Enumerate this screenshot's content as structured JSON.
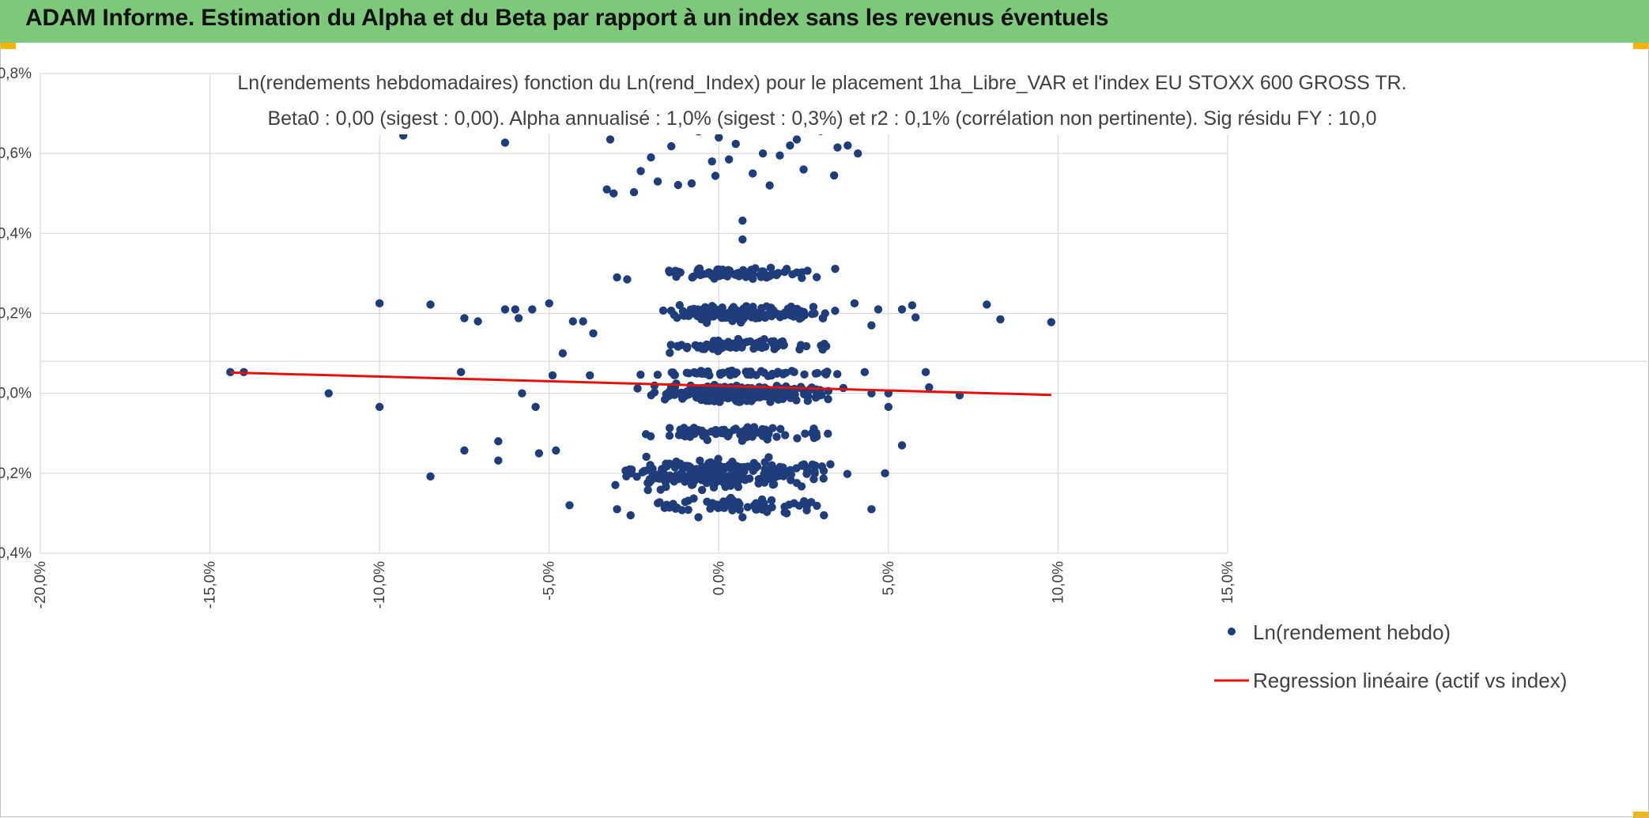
{
  "header": {
    "title": "ADAM Informe. Estimation du Alpha et du Beta par rapport à un index sans les revenus éventuels"
  },
  "chart_data": {
    "type": "scatter",
    "title": "Ln(rendements hebdomadaires) fonction du Ln(rend_Index) pour le placement 1ha_Libre_VAR et l'index EU STOXX 600 GROSS TR.",
    "subtitle": "Beta0 : 0,00 (sigest : 0,00). Alpha annualisé : 1,0% (sigest : 0,3%) et r2 : 0,1% (corrélation non pertinente). Sig résidu FY : 10,0",
    "xlabel": "",
    "ylabel": "",
    "xlim": [
      -20,
      15
    ],
    "ylim": [
      -0.4,
      0.8
    ],
    "x_ticks": [
      "-20,0%",
      "-15,0%",
      "-10,0%",
      "-5,0%",
      "0,0%",
      "5,0%",
      "10,0%",
      "15,0%"
    ],
    "y_ticks": [
      "0,8%",
      "0,6%",
      "0,4%",
      "0,2%",
      "0,0%",
      "-0,2%",
      "-0,4%"
    ],
    "grid": true,
    "legend_position": "bottom-right",
    "colors": {
      "points": "#1f3d7a",
      "regression": "#e3120b",
      "grid": "#d9d9d9",
      "header": "#7ec87c"
    },
    "series": [
      {
        "name": "Ln(rendement hebdo)",
        "type": "scatter",
        "points": [
          [
            -14.4,
            0.053
          ],
          [
            -14.0,
            0.053
          ],
          [
            -11.5,
            0.0
          ],
          [
            -10.0,
            0.225
          ],
          [
            -10.0,
            -0.034
          ],
          [
            -9.3,
            0.645
          ],
          [
            -8.5,
            0.222
          ],
          [
            -8.5,
            -0.208
          ],
          [
            -7.5,
            0.188
          ],
          [
            -7.5,
            -0.143
          ],
          [
            -7.6,
            0.053
          ],
          [
            -7.1,
            0.18
          ],
          [
            -6.3,
            0.627
          ],
          [
            -6.5,
            -0.12
          ],
          [
            -6.5,
            -0.168
          ],
          [
            -6.3,
            0.21
          ],
          [
            -6.0,
            0.21
          ],
          [
            -5.9,
            0.188
          ],
          [
            -5.8,
            0.0
          ],
          [
            -5.5,
            0.21
          ],
          [
            -5.4,
            -0.034
          ],
          [
            -5.3,
            -0.15
          ],
          [
            -5.0,
            0.225
          ],
          [
            -4.9,
            0.045
          ],
          [
            -4.8,
            -0.143
          ],
          [
            -4.6,
            0.1
          ],
          [
            -4.4,
            -0.28
          ],
          [
            -4.3,
            0.18
          ],
          [
            -4.0,
            0.18
          ],
          [
            -3.8,
            0.045
          ],
          [
            -3.7,
            0.15
          ],
          [
            -3.5,
            0.67
          ],
          [
            -3.3,
            0.51
          ],
          [
            -3.2,
            0.635
          ],
          [
            -3.1,
            0.5
          ],
          [
            -3.0,
            0.29
          ],
          [
            -2.7,
            0.285
          ],
          [
            -2.5,
            0.503
          ],
          [
            -2.3,
            0.556
          ],
          [
            -2.0,
            0.59
          ],
          [
            -1.9,
            0.667
          ],
          [
            -1.8,
            0.53
          ],
          [
            -1.6,
            0.663
          ],
          [
            -1.4,
            0.618
          ],
          [
            -1.2,
            0.521
          ],
          [
            -1.0,
            0.678
          ],
          [
            -0.8,
            0.525
          ],
          [
            -0.6,
            0.655
          ],
          [
            -0.2,
            0.58
          ],
          [
            -0.1,
            0.544
          ],
          [
            0.0,
            0.64
          ],
          [
            0.3,
            0.585
          ],
          [
            0.5,
            0.624
          ],
          [
            0.7,
            0.432
          ],
          [
            0.7,
            0.385
          ],
          [
            1.0,
            0.55
          ],
          [
            1.3,
            0.6
          ],
          [
            1.5,
            0.52
          ],
          [
            1.8,
            0.595
          ],
          [
            2.1,
            0.62
          ],
          [
            2.3,
            0.635
          ],
          [
            2.5,
            0.56
          ],
          [
            3.0,
            0.656
          ],
          [
            3.4,
            0.545
          ],
          [
            3.5,
            0.615
          ],
          [
            3.8,
            0.62
          ],
          [
            4.1,
            0.6
          ],
          [
            4.0,
            0.225
          ],
          [
            4.5,
            0.17
          ],
          [
            4.7,
            0.21
          ],
          [
            4.3,
            0.053
          ],
          [
            4.5,
            0.0
          ],
          [
            5.0,
            0.0
          ],
          [
            5.0,
            -0.034
          ],
          [
            4.9,
            -0.2
          ],
          [
            4.5,
            -0.29
          ],
          [
            5.4,
            0.21
          ],
          [
            5.4,
            -0.13
          ],
          [
            5.7,
            0.22
          ],
          [
            5.8,
            0.19
          ],
          [
            6.1,
            0.053
          ],
          [
            6.2,
            0.015
          ],
          [
            7.1,
            -0.005
          ],
          [
            7.9,
            0.222
          ],
          [
            8.3,
            0.185
          ],
          [
            9.8,
            0.178
          ],
          [
            -0.6,
            -0.31
          ],
          [
            0.7,
            -0.31
          ],
          [
            2.0,
            -0.3
          ],
          [
            3.1,
            -0.305
          ],
          [
            -2.6,
            -0.305
          ],
          [
            -3.0,
            -0.29
          ]
        ],
        "clusters": [
          {
            "center_y": 0.0,
            "x_range": [
              -3.2,
              3.4
            ],
            "count": 300,
            "spread": 0.018
          },
          {
            "center_y": 0.2,
            "x_range": [
              -3.0,
              3.6
            ],
            "count": 150,
            "spread": 0.018
          },
          {
            "center_y": -0.2,
            "x_range": [
              -4.3,
              3.6
            ],
            "count": 240,
            "spread": 0.03
          },
          {
            "center_y": 0.3,
            "x_range": [
              -3.0,
              3.0
            ],
            "count": 90,
            "spread": 0.012
          },
          {
            "center_y": 0.12,
            "x_range": [
              -3.2,
              3.2
            ],
            "count": 80,
            "spread": 0.015
          },
          {
            "center_y": -0.1,
            "x_range": [
              -3.2,
              3.2
            ],
            "count": 80,
            "spread": 0.015
          },
          {
            "center_y": -0.28,
            "x_range": [
              -3.3,
              3.2
            ],
            "count": 60,
            "spread": 0.015
          },
          {
            "center_y": 0.05,
            "x_range": [
              -4.0,
              4.0
            ],
            "count": 60,
            "spread": 0.006
          }
        ]
      },
      {
        "name": "Regression linéaire (actif vs index)",
        "type": "line",
        "points": [
          [
            -14.4,
            0.052
          ],
          [
            9.8,
            -0.004
          ]
        ]
      }
    ]
  }
}
